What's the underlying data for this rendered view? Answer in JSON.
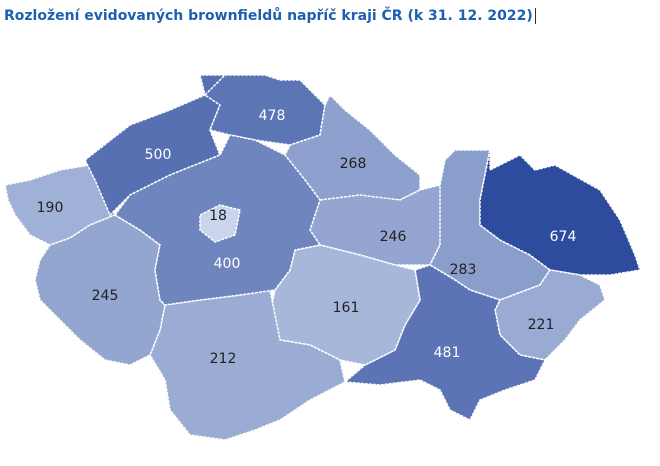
{
  "chart_data": {
    "type": "map",
    "title": "Rozložení evidovaných brownfieldů napříč kraji ČR (k 31. 12. 2022)",
    "values": [
      190,
      500,
      478,
      268,
      246,
      283,
      674,
      221,
      481,
      161,
      212,
      245,
      400,
      18
    ],
    "color_range": [
      "#c9d5eb",
      "#2e4c9e"
    ]
  }
}
